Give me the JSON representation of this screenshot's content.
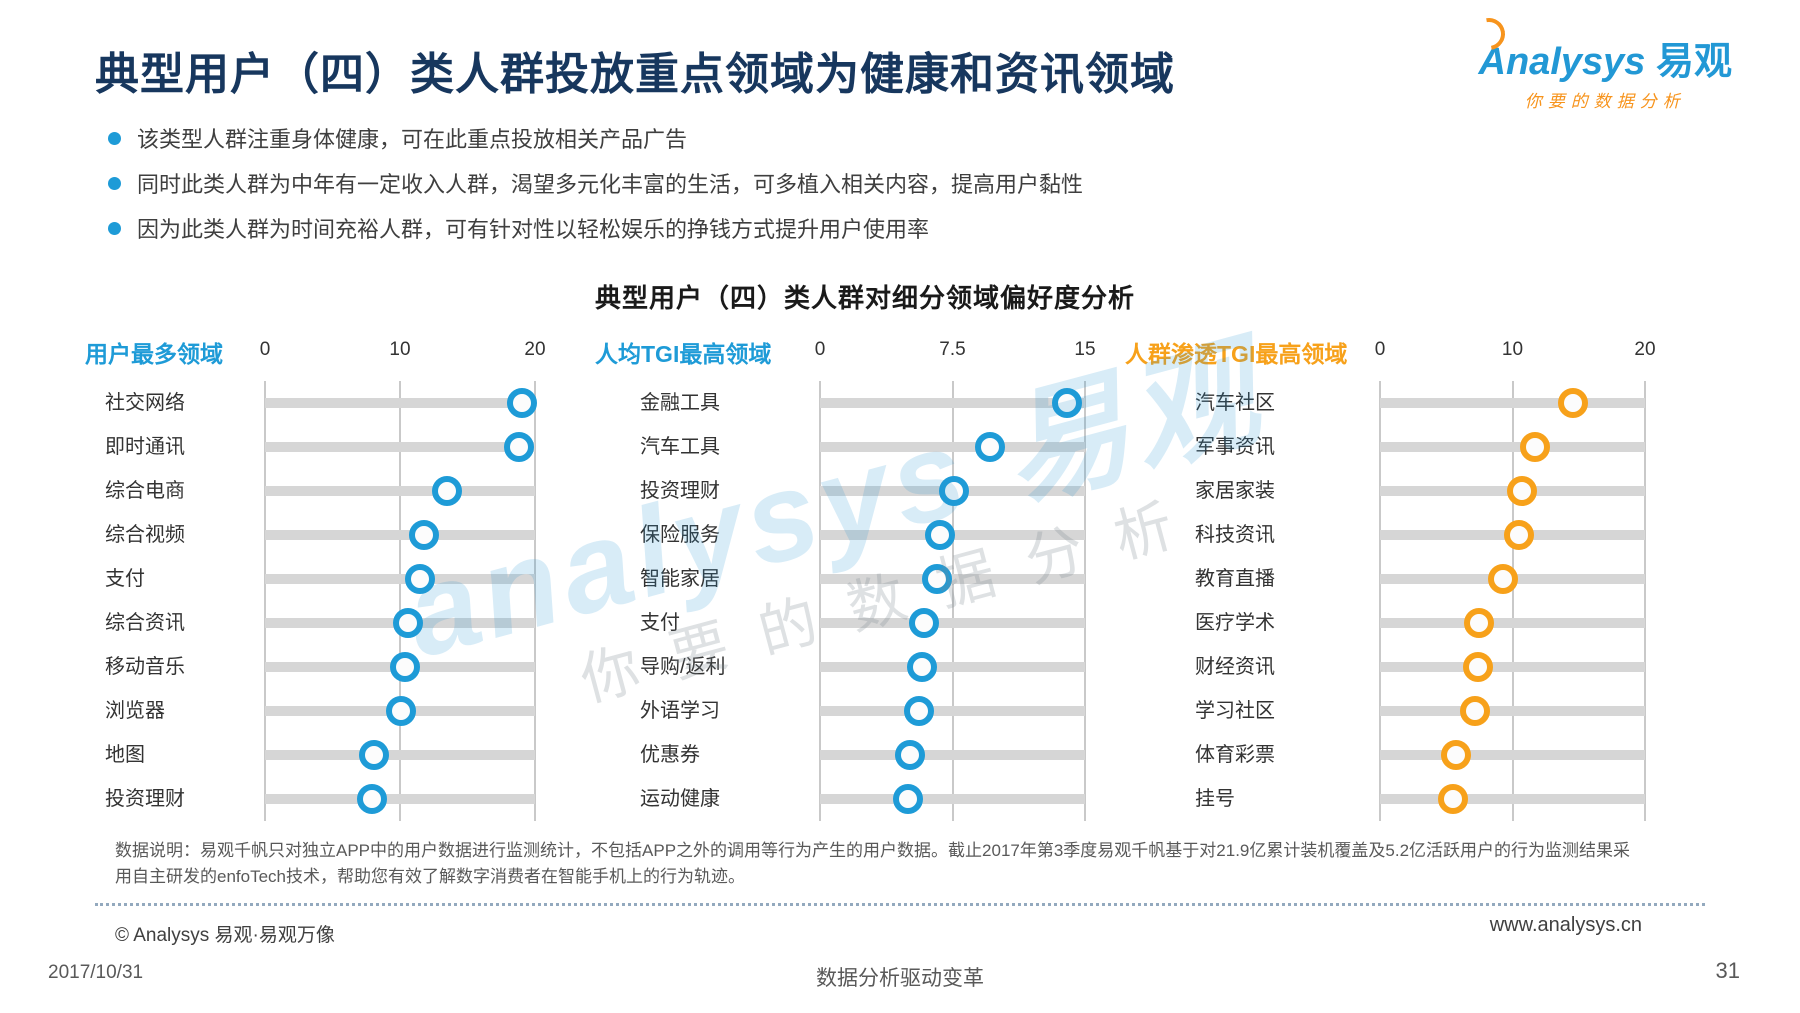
{
  "header": {
    "title": "典型用户（四）类人群投放重点领域为健康和资讯领域",
    "bullets": [
      "该类型人群注重身体健康，可在此重点投放相关产品广告",
      "同时此类人群为中年有一定收入人群，渴望多元化丰富的生活，可多植入相关内容，提高用户黏性",
      "因为此类人群为时间充裕人群，可有针对性以轻松娱乐的挣钱方式提升用户使用率"
    ],
    "logo": {
      "brand": "Analysys",
      "brand_cn": "易观",
      "tagline": "你要的数据分析"
    }
  },
  "chart_title": "典型用户（四）类人群对细分领域偏好度分析",
  "chart_data": [
    {
      "type": "scatter",
      "orientation": "horizontal-dot",
      "title": "用户最多领域",
      "accent": "#1E9BD7",
      "xlim": [
        0,
        20
      ],
      "ticks": [
        "0",
        "10",
        "20"
      ],
      "grid": true,
      "categories": [
        "社交网络",
        "即时通讯",
        "综合电商",
        "综合视频",
        "支付",
        "综合资讯",
        "移动音乐",
        "浏览器",
        "地图",
        "投资理财"
      ],
      "values": [
        19,
        18.8,
        13.5,
        11.8,
        11.5,
        10.6,
        10.4,
        10.1,
        8.1,
        7.9
      ]
    },
    {
      "type": "scatter",
      "orientation": "horizontal-dot",
      "title": "人均TGI最高领域",
      "accent": "#1E9BD7",
      "xlim": [
        0,
        15
      ],
      "ticks": [
        "0",
        "7.5",
        "15"
      ],
      "grid": true,
      "categories": [
        "金融工具",
        "汽车工具",
        "投资理财",
        "保险服务",
        "智能家居",
        "支付",
        "导购/返利",
        "外语学习",
        "优惠券",
        "运动健康"
      ],
      "values": [
        14,
        9.6,
        7.6,
        6.8,
        6.6,
        5.9,
        5.8,
        5.6,
        5.1,
        5.0
      ]
    },
    {
      "type": "scatter",
      "orientation": "horizontal-dot",
      "title": "人群渗透TGI最高领域",
      "accent": "#F7A11A",
      "xlim": [
        0,
        20
      ],
      "ticks": [
        "0",
        "10",
        "20"
      ],
      "grid": true,
      "categories": [
        "汽车社区",
        "军事资讯",
        "家居家装",
        "科技资讯",
        "教育直播",
        "医疗学术",
        "财经资讯",
        "学习社区",
        "体育彩票",
        "挂号"
      ],
      "values": [
        14.6,
        11.7,
        10.7,
        10.5,
        9.3,
        7.5,
        7.4,
        7.2,
        5.7,
        5.5
      ]
    }
  ],
  "watermark": {
    "brand": "analysys 易观",
    "tagline": "你要的数据分析"
  },
  "footer": {
    "note": "数据说明：易观千帆只对独立APP中的用户数据进行监测统计，不包括APP之外的调用等行为产生的用户数据。截止2017年第3季度易观千帆基于对21.9亿累计装机覆盖及5.2亿活跃用户的行为监测结果采用自主研发的enfoTech技术，帮助您有效了解数字消费者在智能手机上的行为轨迹。",
    "copyright": "© Analysys 易观·易观万像",
    "website": "www.analysys.cn",
    "date": "2017/10/31",
    "slogan": "数据分析驱动变革",
    "page": "31"
  }
}
